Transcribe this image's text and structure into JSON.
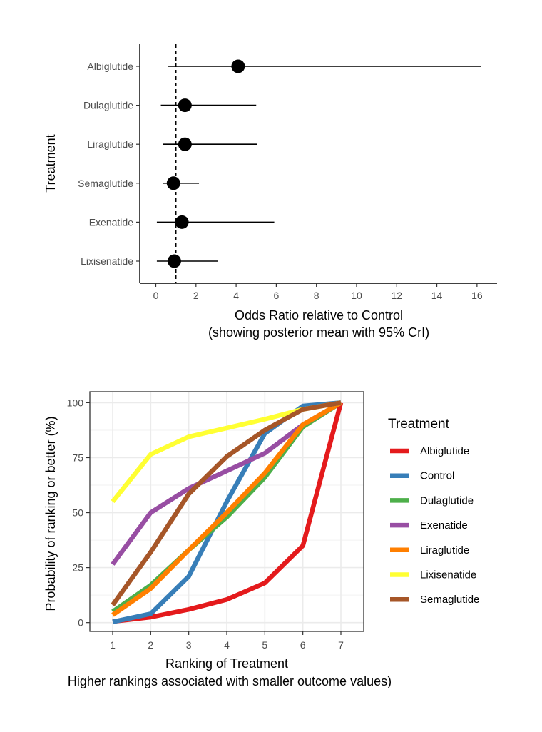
{
  "chart_data": [
    {
      "type": "scatter",
      "subtype": "forest",
      "xlabel": "Odds Ratio relative to Control",
      "xlabel_sub": "(showing posterior mean with 95% CrI)",
      "ylabel": "Treatment",
      "xlim": [
        -0.8,
        17
      ],
      "xticks": [
        0,
        2,
        4,
        6,
        8,
        10,
        12,
        14,
        16
      ],
      "reference_line": 1,
      "grid": false,
      "categories": [
        "Albiglutide",
        "Dulaglutide",
        "Liraglutide",
        "Semaglutide",
        "Exenatide",
        "Lixisenatide"
      ],
      "estimates": [
        4.1,
        1.45,
        1.45,
        0.88,
        1.3,
        0.92
      ],
      "lower": [
        0.6,
        0.25,
        0.35,
        0.35,
        0.05,
        0.05
      ],
      "upper": [
        16.2,
        5.0,
        5.05,
        2.15,
        5.9,
        3.1
      ]
    },
    {
      "type": "line",
      "xlabel": "Ranking of Treatment",
      "xlabel_sub": "Higher rankings associated with smaller outcome values)",
      "ylabel": "Probability of ranking or better (%)",
      "xlim": [
        0.4,
        7.6
      ],
      "ylim": [
        -4,
        105
      ],
      "xticks": [
        1,
        2,
        3,
        4,
        5,
        6,
        7
      ],
      "yticks": [
        0,
        25,
        50,
        75,
        100
      ],
      "grid": true,
      "legend_title": "Treatment",
      "legend_position": "right",
      "x": [
        1,
        2,
        3,
        4,
        5,
        6,
        7
      ],
      "series": [
        {
          "name": "Albiglutide",
          "color": "#E41A1C",
          "values": [
            0.5,
            2.5,
            6,
            10.5,
            18,
            35,
            100
          ]
        },
        {
          "name": "Control",
          "color": "#377EB8",
          "values": [
            0.3,
            4,
            21,
            55,
            86,
            98.5,
            100
          ]
        },
        {
          "name": "Dulaglutide",
          "color": "#4DAF4A",
          "values": [
            5,
            17,
            33,
            48,
            66,
            89,
            100
          ]
        },
        {
          "name": "Exenatide",
          "color": "#984EA3",
          "values": [
            26.5,
            50,
            61,
            69,
            77,
            90,
            100
          ]
        },
        {
          "name": "Liraglutide",
          "color": "#FF7F00",
          "values": [
            3.5,
            15.5,
            33,
            50,
            68,
            90,
            100
          ]
        },
        {
          "name": "Lixisenatide",
          "color": "#FFFF33",
          "values": [
            55,
            76.5,
            84.5,
            88.5,
            92.5,
            97,
            100
          ]
        },
        {
          "name": "Semaglutide",
          "color": "#A65628",
          "values": [
            8,
            32,
            58.5,
            75.5,
            87.5,
            97,
            100
          ]
        }
      ]
    }
  ]
}
